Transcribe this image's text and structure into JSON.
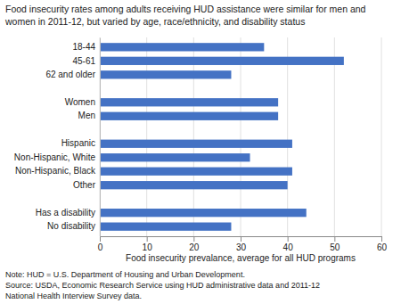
{
  "chart_data": {
    "type": "bar",
    "orientation": "horizontal",
    "title": "Food insecurity rates among adults receiving HUD assistance were similar for men and",
    "subtitle": "women in 2011-12, but varied by age, race/ethnicity, and disability status",
    "categories": [
      "18-44",
      "45-61",
      "62 and older",
      null,
      "Women",
      "Men",
      null,
      "Hispanic",
      "Non-Hispanic, White",
      "Non-Hispanic, Black",
      "Other",
      null,
      "Has a disability",
      "No disability"
    ],
    "values": [
      35,
      52,
      28,
      0,
      38,
      38,
      0,
      41,
      32,
      41,
      40,
      0,
      44,
      28
    ],
    "color": "#4472C4",
    "x_label": "Food insecurity prevalance, average for all HUD programs",
    "xlim": [
      0,
      60
    ],
    "xticks": [
      0,
      10,
      20,
      30,
      40,
      50,
      60
    ],
    "grid": true,
    "annotations": [
      "Note: HUD = U.S. Department of Housing and Urban Development.",
      "Source: USDA, Economic Research Service using HUD administrative data and 2011-12",
      "National Health Interview Survey data."
    ]
  }
}
